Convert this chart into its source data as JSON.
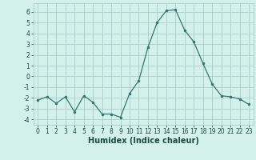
{
  "x": [
    0,
    1,
    2,
    3,
    4,
    5,
    6,
    7,
    8,
    9,
    10,
    11,
    12,
    13,
    14,
    15,
    16,
    17,
    18,
    19,
    20,
    21,
    22,
    23
  ],
  "y": [
    -2.2,
    -1.9,
    -2.5,
    -1.9,
    -3.3,
    -1.8,
    -2.4,
    -3.5,
    -3.5,
    -3.8,
    -1.6,
    -0.4,
    2.7,
    5.0,
    6.1,
    6.2,
    4.3,
    3.2,
    1.2,
    -0.7,
    -1.8,
    -1.9,
    -2.1,
    -2.6
  ],
  "line_color": "#2d7a6e",
  "marker": ".",
  "marker_size": 3,
  "bg_color": "#d4f0eb",
  "grid_color": "#aacfc8",
  "xlabel": "Humidex (Indice chaleur)",
  "xlim": [
    -0.5,
    23.5
  ],
  "ylim": [
    -4.5,
    6.8
  ],
  "yticks": [
    -4,
    -3,
    -2,
    -1,
    0,
    1,
    2,
    3,
    4,
    5,
    6
  ],
  "xticks": [
    0,
    1,
    2,
    3,
    4,
    5,
    6,
    7,
    8,
    9,
    10,
    11,
    12,
    13,
    14,
    15,
    16,
    17,
    18,
    19,
    20,
    21,
    22,
    23
  ],
  "tick_fontsize": 5.5,
  "xlabel_fontsize": 7,
  "label_color": "#1a4a40"
}
